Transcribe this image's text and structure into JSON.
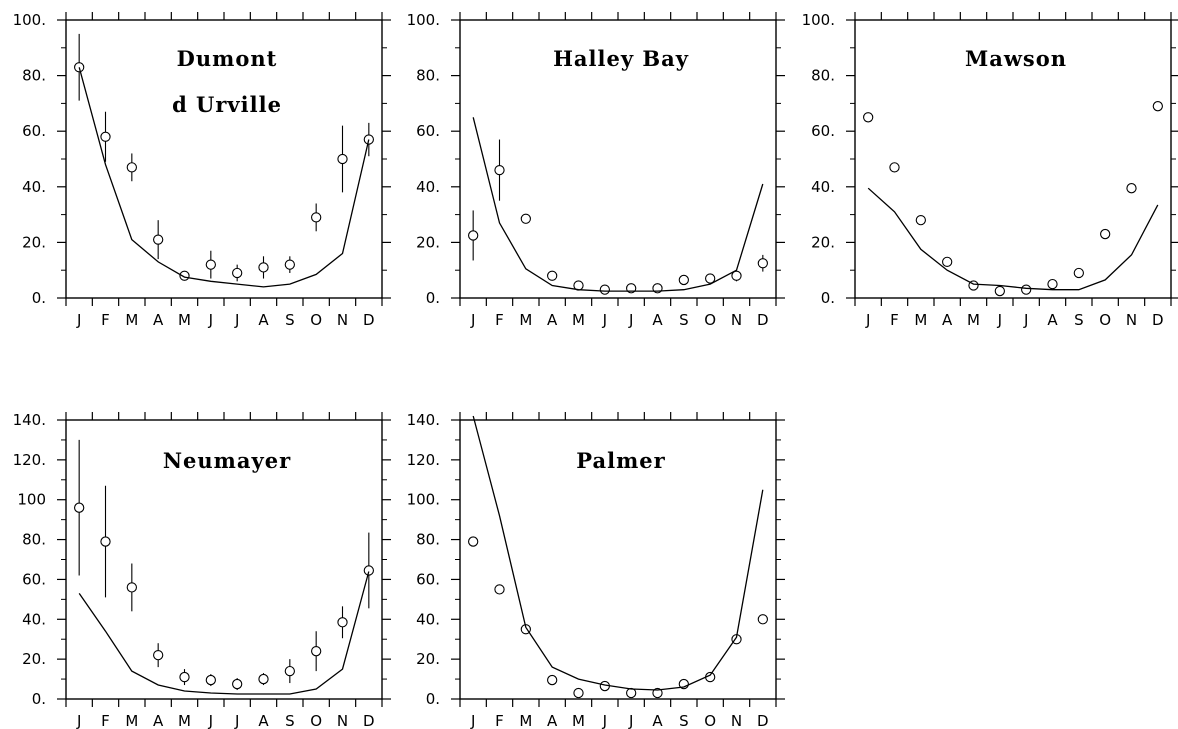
{
  "chart_data": [
    {
      "type": "scatter",
      "title_lines": [
        "Dumont",
        "d Urville"
      ],
      "categories": [
        "J",
        "F",
        "M",
        "A",
        "M",
        "J",
        "J",
        "A",
        "S",
        "O",
        "N",
        "D"
      ],
      "ylim": [
        0,
        100
      ],
      "yticks": [
        "0.",
        "20.",
        "40.",
        "60.",
        "80.",
        "100."
      ],
      "series": [
        {
          "kind": "points",
          "values": [
            83,
            58,
            47,
            21,
            8,
            12,
            9,
            11,
            12,
            29,
            50,
            57
          ],
          "errors": [
            12,
            9,
            5,
            7,
            1,
            5,
            3,
            4,
            3,
            5,
            12,
            6
          ]
        },
        {
          "kind": "line",
          "values": [
            83,
            48,
            21,
            13,
            7.5,
            6,
            5,
            4,
            5,
            8.5,
            16,
            57
          ]
        }
      ]
    },
    {
      "type": "scatter",
      "title_lines": [
        "Halley Bay"
      ],
      "categories": [
        "J",
        "F",
        "M",
        "A",
        "M",
        "J",
        "J",
        "A",
        "S",
        "O",
        "N",
        "D"
      ],
      "ylim": [
        0,
        100
      ],
      "yticks": [
        "0.",
        "20.",
        "40.",
        "60.",
        "80.",
        "100."
      ],
      "series": [
        {
          "kind": "points",
          "values": [
            22.5,
            46,
            28.5,
            8,
            4.5,
            3,
            3.5,
            3.5,
            6.5,
            7,
            8,
            12.5
          ],
          "errors": [
            9,
            11,
            1.5,
            1.5,
            1,
            1,
            1,
            1.5,
            1,
            1.5,
            2,
            3
          ]
        },
        {
          "kind": "line",
          "values": [
            65,
            27,
            10.5,
            4.5,
            3,
            2.5,
            2.5,
            2.5,
            3,
            5,
            10,
            41
          ]
        }
      ]
    },
    {
      "type": "scatter",
      "title_lines": [
        "Mawson"
      ],
      "categories": [
        "J",
        "F",
        "M",
        "A",
        "M",
        "J",
        "J",
        "A",
        "S",
        "O",
        "N",
        "D"
      ],
      "ylim": [
        0,
        100
      ],
      "yticks": [
        "0.",
        "20.",
        "40.",
        "60.",
        "80.",
        "100."
      ],
      "series": [
        {
          "kind": "points",
          "values": [
            65,
            47,
            28,
            13,
            4.5,
            2.5,
            3,
            5,
            9,
            23,
            39.5,
            69
          ],
          "errors": [
            0,
            0,
            0,
            0,
            0,
            0,
            0,
            0,
            0,
            0,
            0,
            0
          ]
        },
        {
          "kind": "line",
          "values": [
            39.5,
            31,
            17.5,
            10,
            5,
            4.5,
            3.5,
            3,
            3,
            6.5,
            15.5,
            33.5
          ]
        }
      ]
    },
    {
      "type": "scatter",
      "title_lines": [
        "Neumayer"
      ],
      "categories": [
        "J",
        "F",
        "M",
        "A",
        "M",
        "J",
        "J",
        "A",
        "S",
        "O",
        "N",
        "D"
      ],
      "ylim": [
        0,
        140
      ],
      "yticks": [
        "0.",
        "20.",
        "40.",
        "60.",
        "80.",
        "100",
        "120.",
        "140."
      ],
      "series": [
        {
          "kind": "points",
          "values": [
            96,
            79,
            56,
            22,
            11,
            9.5,
            7.5,
            10,
            14,
            24,
            38.5,
            64.5
          ],
          "errors": [
            34,
            28,
            12,
            6,
            4,
            3,
            3,
            3,
            6,
            10,
            8,
            19
          ]
        },
        {
          "kind": "line",
          "values": [
            53,
            34,
            14,
            7,
            4,
            3,
            2.5,
            2.5,
            2.5,
            5,
            15,
            64
          ]
        }
      ]
    },
    {
      "type": "scatter",
      "title_lines": [
        "Palmer"
      ],
      "categories": [
        "J",
        "F",
        "M",
        "A",
        "M",
        "J",
        "J",
        "A",
        "S",
        "O",
        "N",
        "D"
      ],
      "ylim": [
        0,
        140
      ],
      "yticks": [
        "0.",
        "20.",
        "40.",
        "60.",
        "80.",
        "100.",
        "120.",
        "140."
      ],
      "series": [
        {
          "kind": "points",
          "values": [
            79,
            55,
            35,
            9.5,
            3,
            6.5,
            3,
            3,
            7.5,
            11,
            30,
            40
          ],
          "errors": [
            0,
            0,
            0,
            0,
            0,
            0,
            0,
            0,
            0,
            0,
            0,
            0
          ]
        },
        {
          "kind": "line",
          "values": [
            142,
            92,
            36,
            16,
            10,
            7,
            5,
            4.5,
            6,
            12,
            31,
            105
          ]
        }
      ]
    }
  ]
}
